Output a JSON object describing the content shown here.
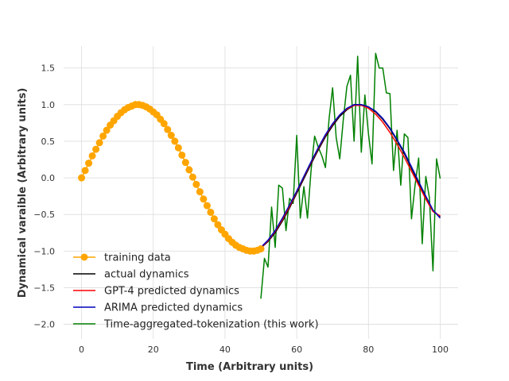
{
  "chart_data": {
    "type": "line",
    "xlabel": "Time (Arbitrary units)",
    "ylabel": "Dynamical varaible (Arbitrary units)",
    "xlim": [
      -5,
      105
    ],
    "ylim": [
      -2.2,
      1.8
    ],
    "xticks": [
      0,
      20,
      40,
      60,
      80,
      100
    ],
    "yticks": [
      -2.0,
      -1.5,
      -1.0,
      -0.5,
      0.0,
      0.5,
      1.0,
      1.5
    ],
    "xtick_labels": [
      "0",
      "20",
      "40",
      "60",
      "80",
      "100"
    ],
    "ytick_labels": [
      "−2.0",
      "−1.5",
      "−1.0",
      "−0.5",
      "0.0",
      "0.5",
      "1.0",
      "1.5"
    ],
    "grid": true,
    "legend_position": "lower-left",
    "series": [
      {
        "name": "training data",
        "color": "#ffa500",
        "style": "line-markers",
        "x": [
          0,
          1,
          2,
          3,
          4,
          5,
          6,
          7,
          8,
          9,
          10,
          11,
          12,
          13,
          14,
          15,
          16,
          17,
          18,
          19,
          20,
          21,
          22,
          23,
          24,
          25,
          26,
          27,
          28,
          29,
          30,
          31,
          32,
          33,
          34,
          35,
          36,
          37,
          38,
          39,
          40,
          41,
          42,
          43,
          44,
          45,
          46,
          47,
          48,
          49,
          50
        ],
        "y": [
          0.0,
          0.1,
          0.2,
          0.3,
          0.39,
          0.48,
          0.57,
          0.65,
          0.72,
          0.78,
          0.84,
          0.89,
          0.93,
          0.96,
          0.98,
          1.0,
          1.0,
          0.99,
          0.97,
          0.94,
          0.9,
          0.86,
          0.8,
          0.74,
          0.66,
          0.58,
          0.5,
          0.41,
          0.31,
          0.21,
          0.11,
          0.01,
          -0.09,
          -0.19,
          -0.29,
          -0.38,
          -0.47,
          -0.56,
          -0.64,
          -0.71,
          -0.77,
          -0.83,
          -0.88,
          -0.92,
          -0.95,
          -0.97,
          -0.99,
          -1.0,
          -1.0,
          -0.99,
          -0.97
        ]
      },
      {
        "name": "actual dynamics",
        "color": "#000000",
        "style": "line",
        "x": [
          50,
          52,
          54,
          56,
          58,
          60,
          62,
          64,
          66,
          68,
          70,
          72,
          74,
          76,
          78,
          80,
          82,
          84,
          86,
          88,
          90,
          92,
          94,
          96,
          98,
          100
        ],
        "y": [
          -0.96,
          -0.87,
          -0.75,
          -0.59,
          -0.41,
          -0.21,
          -0.01,
          0.19,
          0.38,
          0.56,
          0.71,
          0.84,
          0.93,
          0.99,
          1.0,
          0.97,
          0.9,
          0.8,
          0.67,
          0.51,
          0.33,
          0.13,
          -0.07,
          -0.27,
          -0.45,
          -0.53
        ]
      },
      {
        "name": "GPT-4 predicted dynamics",
        "color": "#ff0000",
        "style": "line",
        "x": [
          50,
          52,
          54,
          56,
          58,
          60,
          62,
          64,
          66,
          68,
          70,
          72,
          74,
          76,
          78,
          80,
          82,
          84,
          86,
          88,
          90,
          92,
          94,
          96,
          98,
          100
        ],
        "y": [
          -0.96,
          -0.86,
          -0.73,
          -0.57,
          -0.39,
          -0.19,
          0.01,
          0.21,
          0.4,
          0.58,
          0.73,
          0.86,
          0.94,
          0.99,
          0.99,
          0.95,
          0.87,
          0.76,
          0.62,
          0.46,
          0.28,
          0.09,
          -0.1,
          -0.29,
          -0.46,
          -0.52
        ]
      },
      {
        "name": "ARIMA predicted dynamics",
        "color": "#0000bb",
        "style": "line",
        "x": [
          50,
          52,
          54,
          56,
          58,
          60,
          62,
          64,
          66,
          68,
          70,
          72,
          74,
          76,
          78,
          80,
          82,
          84,
          86,
          88,
          90,
          92,
          94,
          96,
          98,
          100
        ],
        "y": [
          -0.95,
          -0.85,
          -0.72,
          -0.55,
          -0.37,
          -0.18,
          0.02,
          0.22,
          0.41,
          0.59,
          0.74,
          0.86,
          0.95,
          1.0,
          1.0,
          0.97,
          0.91,
          0.81,
          0.68,
          0.52,
          0.35,
          0.15,
          -0.05,
          -0.25,
          -0.44,
          -0.55
        ]
      },
      {
        "name": "Time-aggregated-tokenization (this work)",
        "color": "#008000",
        "style": "line",
        "x": [
          50,
          51,
          52,
          53,
          54,
          55,
          56,
          57,
          58,
          59,
          60,
          61,
          62,
          63,
          64,
          65,
          66,
          67,
          68,
          69,
          70,
          71,
          72,
          73,
          74,
          75,
          76,
          77,
          78,
          79,
          80,
          81,
          82,
          83,
          84,
          85,
          86,
          87,
          88,
          89,
          90,
          91,
          92,
          93,
          94,
          95,
          96,
          97,
          98,
          99,
          100
        ],
        "y": [
          -1.65,
          -1.1,
          -1.22,
          -0.4,
          -0.95,
          -0.1,
          -0.14,
          -0.72,
          -0.28,
          -0.35,
          0.58,
          -0.55,
          -0.12,
          -0.55,
          0.1,
          0.57,
          0.42,
          0.3,
          0.14,
          0.8,
          1.23,
          0.55,
          0.26,
          0.8,
          1.25,
          1.4,
          0.5,
          1.66,
          0.35,
          1.13,
          0.6,
          0.19,
          1.7,
          1.5,
          1.5,
          1.16,
          1.15,
          0.1,
          0.65,
          -0.1,
          0.6,
          0.55,
          -0.56,
          -0.1,
          0.27,
          -0.9,
          0.02,
          -0.27,
          -1.27,
          0.26,
          -0.01
        ]
      }
    ]
  }
}
